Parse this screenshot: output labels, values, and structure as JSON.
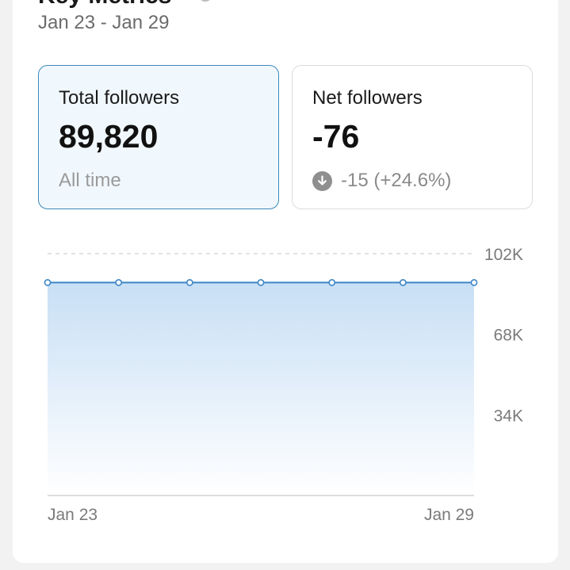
{
  "header": {
    "title": "Key Metrics",
    "info_icon": "info-icon",
    "date_range": "Jan 23 - Jan 29"
  },
  "metrics": {
    "total_followers": {
      "label": "Total followers",
      "value": "89,820",
      "sub": "All time",
      "selected": true
    },
    "net_followers": {
      "label": "Net followers",
      "value": "-76",
      "delta_icon": "arrow-down-circle-icon",
      "delta": "-15 (+24.6%)"
    }
  },
  "colors": {
    "accent": "#3a88b8",
    "line": "#3d86c6",
    "area_top": "#c8dff5",
    "area_bottom": "#ffffff",
    "grid": "#cfcfcf"
  },
  "chart_data": {
    "type": "area",
    "title": "",
    "xlabel": "",
    "ylabel": "",
    "x": [
      "Jan 23",
      "Jan 24",
      "Jan 25",
      "Jan 26",
      "Jan 27",
      "Jan 28",
      "Jan 29"
    ],
    "x_tick_labels": [
      "Jan 23",
      "Jan 29"
    ],
    "series": [
      {
        "values": [
          89820,
          89820,
          89820,
          89820,
          89820,
          89820,
          89820
        ]
      }
    ],
    "ylim": [
      0,
      102000
    ],
    "y_ticks": [
      {
        "value": 102000,
        "label": "102K"
      },
      {
        "value": 68000,
        "label": "68K"
      },
      {
        "value": 34000,
        "label": "34K"
      }
    ],
    "grid": true,
    "y_axis_side": "right",
    "markers": "hollow-circles"
  }
}
